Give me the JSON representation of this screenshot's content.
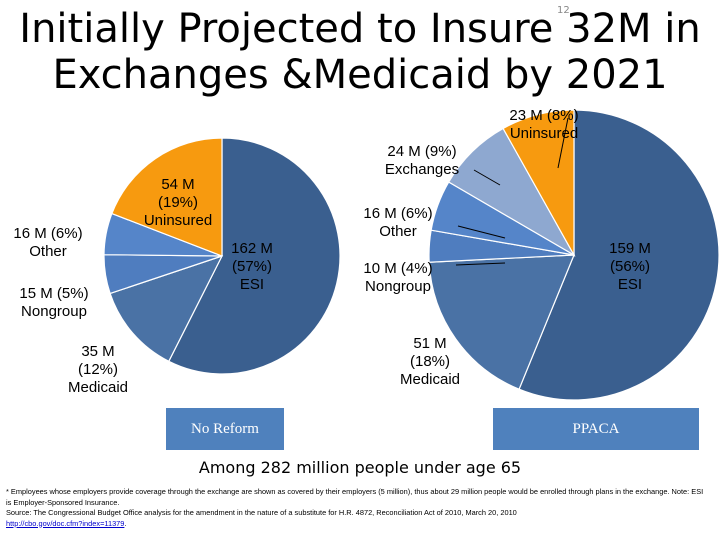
{
  "title": "Initially Projected to Insure 32M in Exchanges &Medicaid by 2021",
  "slide_number": "12",
  "chart_data": [
    {
      "type": "pie",
      "name": "No Reform",
      "button_label": "No Reform",
      "slices": [
        {
          "label": "ESI",
          "value": 162,
          "pct": 57,
          "text": "162 M\n(57%)\nESI",
          "color": "#3a5f8f"
        },
        {
          "label": "Medicaid",
          "value": 35,
          "pct": 12,
          "text": "35 M\n(12%)\nMedicaid",
          "color": "#4a72a5"
        },
        {
          "label": "Nongroup",
          "value": 15,
          "pct": 5,
          "text": "15 M (5%)\nNongroup",
          "color": "#4f7dbf"
        },
        {
          "label": "Other",
          "value": 16,
          "pct": 6,
          "text": "16 M (6%)\nOther",
          "color": "#5585c9"
        },
        {
          "label": "Uninsured",
          "value": 54,
          "pct": 19,
          "text": "54 M\n(19%)\nUninsured",
          "color": "#f79a0f"
        }
      ]
    },
    {
      "type": "pie",
      "name": "PPACA",
      "button_label": "PPACA",
      "slices": [
        {
          "label": "ESI",
          "value": 159,
          "pct": 56,
          "text": "159 M\n(56%)\nESI",
          "color": "#3a5f8f"
        },
        {
          "label": "Medicaid",
          "value": 51,
          "pct": 18,
          "text": "51 M\n(18%)\nMedicaid",
          "color": "#4a72a5"
        },
        {
          "label": "Nongroup",
          "value": 10,
          "pct": 4,
          "text": "10 M (4%)\nNongroup",
          "color": "#4f7dbf"
        },
        {
          "label": "Other",
          "value": 16,
          "pct": 6,
          "text": "16 M (6%)\nOther",
          "color": "#5585c9"
        },
        {
          "label": "Exchanges",
          "value": 24,
          "pct": 9,
          "text": "24 M (9%)\nExchanges",
          "color": "#8ea8d0"
        },
        {
          "label": "Uninsured",
          "value": 23,
          "pct": 8,
          "text": "23 M (8%)\nUninsured",
          "color": "#f79a0f"
        }
      ]
    }
  ],
  "caption": "Among 282 million people under age 65",
  "footnote": {
    "line1": "* Employees whose employers provide coverage through the exchange are shown as covered by their employers (5 million), thus about 29 million people would be enrolled through plans in the exchange. Note: ESI is Employer-Sponsored Insurance.",
    "line2": "Source: The Congressional Budget Office analysis for the amendment in the nature of a substitute for H.R. 4872, Reconciliation Act of 2010, March 20, 2010",
    "link": "http://cbo.gov/doc.cfm?index=11379",
    "link_suffix": "."
  }
}
